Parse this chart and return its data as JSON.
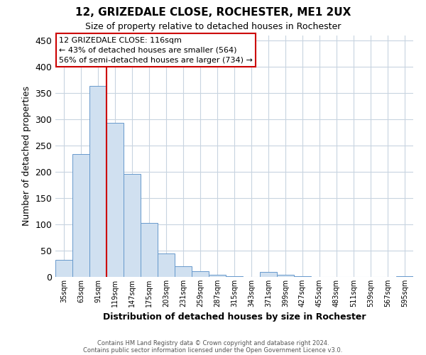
{
  "title": "12, GRIZEDALE CLOSE, ROCHESTER, ME1 2UX",
  "subtitle": "Size of property relative to detached houses in Rochester",
  "xlabel": "Distribution of detached houses by size in Rochester",
  "ylabel": "Number of detached properties",
  "categories": [
    "35sqm",
    "63sqm",
    "91sqm",
    "119sqm",
    "147sqm",
    "175sqm",
    "203sqm",
    "231sqm",
    "259sqm",
    "287sqm",
    "315sqm",
    "343sqm",
    "371sqm",
    "399sqm",
    "427sqm",
    "455sqm",
    "483sqm",
    "511sqm",
    "539sqm",
    "567sqm",
    "595sqm"
  ],
  "values": [
    33,
    234,
    364,
    293,
    196,
    103,
    45,
    20,
    11,
    4,
    1,
    0,
    9,
    4,
    1,
    0,
    0,
    0,
    0,
    0,
    2
  ],
  "bar_color": "#d0e0f0",
  "bar_edge_color": "#6699cc",
  "bar_width": 1.0,
  "ylim": [
    0,
    460
  ],
  "yticks": [
    0,
    50,
    100,
    150,
    200,
    250,
    300,
    350,
    400,
    450
  ],
  "property_line_color": "#cc0000",
  "annotation_title": "12 GRIZEDALE CLOSE: 116sqm",
  "annotation_line1": "← 43% of detached houses are smaller (564)",
  "annotation_line2": "56% of semi-detached houses are larger (734) →",
  "footer_line1": "Contains HM Land Registry data © Crown copyright and database right 2024.",
  "footer_line2": "Contains public sector information licensed under the Open Government Licence v3.0.",
  "background_color": "#ffffff",
  "grid_color": "#c8d4e0"
}
